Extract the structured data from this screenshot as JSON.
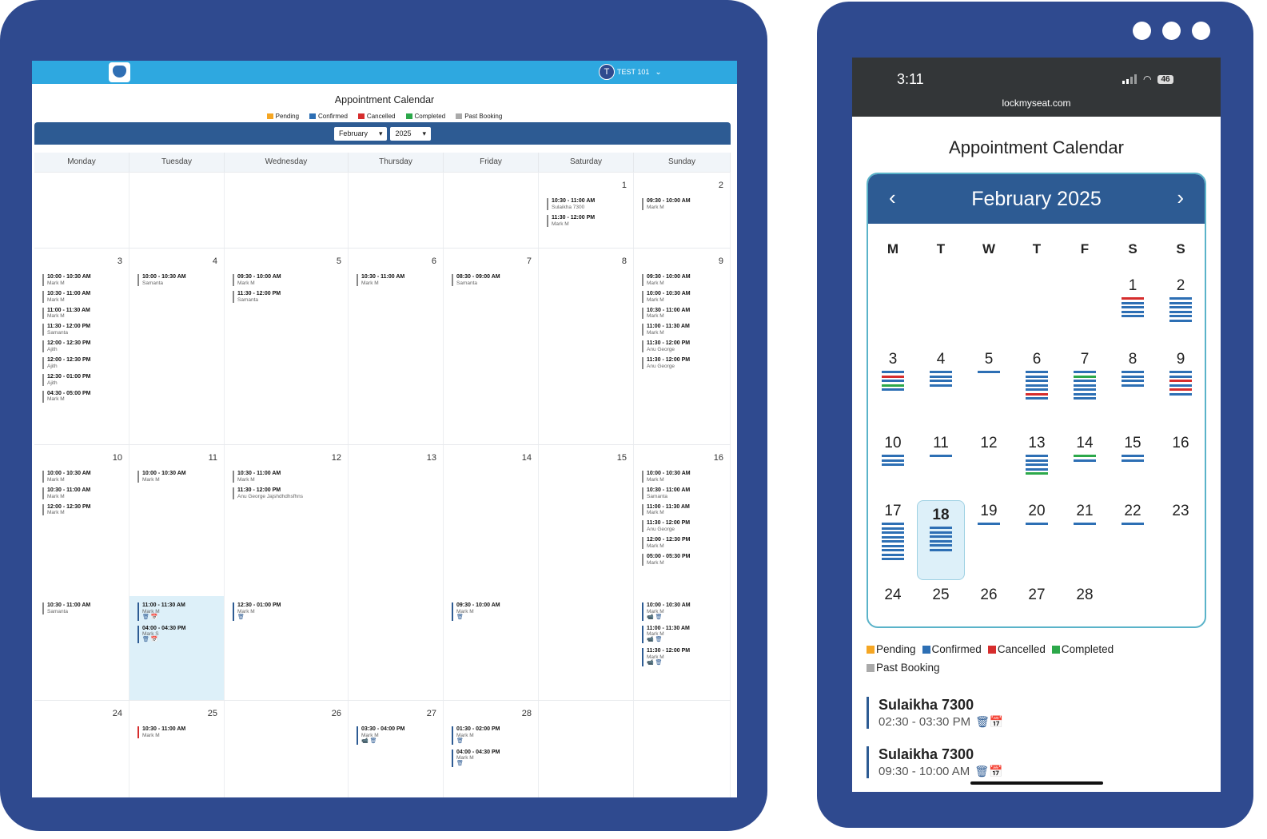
{
  "colors": {
    "pending": "#f5a623",
    "confirmed": "#2d6fb4",
    "cancelled": "#d62d2d",
    "completed": "#2ca84a",
    "past": "#aaaaaa"
  },
  "tablet": {
    "user": {
      "initial": "T",
      "name": "TEST 101"
    },
    "title": "Appointment Calendar",
    "legend": [
      "Pending",
      "Confirmed",
      "Cancelled",
      "Completed",
      "Past Booking"
    ],
    "month": "February",
    "year": "2025",
    "days": [
      "Monday",
      "Tuesday",
      "Wednesday",
      "Thursday",
      "Friday",
      "Saturday",
      "Sunday"
    ],
    "weeks": [
      [
        {},
        {},
        {},
        {},
        {},
        {
          "d": "1",
          "ev": [
            {
              "t": "10:30 - 11:00 AM",
              "n": "Sulaikha 7300"
            },
            {
              "t": "11:30 - 12:00 PM",
              "n": "Mark M"
            }
          ]
        },
        {
          "d": "2",
          "ev": [
            {
              "t": "09:30 - 10:00 AM",
              "n": "Mark M"
            }
          ]
        }
      ],
      [
        {
          "d": "3",
          "ev": [
            {
              "t": "10:00 - 10:30 AM",
              "n": "Mark M"
            },
            {
              "t": "10:30 - 11:00 AM",
              "n": "Mark M"
            },
            {
              "t": "11:00 - 11:30 AM",
              "n": "Mark M"
            },
            {
              "t": "11:30 - 12:00 PM",
              "n": "Samanta"
            },
            {
              "t": "12:00 - 12:30 PM",
              "n": "Ajith"
            },
            {
              "t": "12:00 - 12:30 PM",
              "n": "Ajith"
            },
            {
              "t": "12:30 - 01:00 PM",
              "n": "Ajith"
            },
            {
              "t": "04:30 - 05:00 PM",
              "n": "Mark M"
            }
          ]
        },
        {
          "d": "4",
          "ev": [
            {
              "t": "10:00 - 10:30 AM",
              "n": "Samanta"
            }
          ]
        },
        {
          "d": "5",
          "ev": [
            {
              "t": "09:30 - 10:00 AM",
              "n": "Mark M"
            },
            {
              "t": "11:30 - 12:00 PM",
              "n": "Samanta"
            }
          ]
        },
        {
          "d": "6",
          "ev": [
            {
              "t": "10:30 - 11:00 AM",
              "n": "Mark M"
            }
          ]
        },
        {
          "d": "7",
          "ev": [
            {
              "t": "08:30 - 09:00 AM",
              "n": "Samanta"
            }
          ]
        },
        {
          "d": "8",
          "ev": []
        },
        {
          "d": "9",
          "ev": [
            {
              "t": "09:30 - 10:00 AM",
              "n": "Mark M"
            },
            {
              "t": "10:00 - 10:30 AM",
              "n": "Mark M"
            },
            {
              "t": "10:30 - 11:00 AM",
              "n": "Mark M"
            },
            {
              "t": "11:00 - 11:30 AM",
              "n": "Mark M"
            },
            {
              "t": "11:30 - 12:00 PM",
              "n": "Anu George"
            },
            {
              "t": "11:30 - 12:00 PM",
              "n": "Anu George"
            }
          ]
        }
      ],
      [
        {
          "d": "10",
          "ev": [
            {
              "t": "10:00 - 10:30 AM",
              "n": "Mark M"
            },
            {
              "t": "10:30 - 11:00 AM",
              "n": "Mark M"
            },
            {
              "t": "12:00 - 12:30 PM",
              "n": "Mark M"
            }
          ],
          "ev2": [
            {
              "t": "10:30 - 11:00 AM",
              "n": "Samanta"
            }
          ]
        },
        {
          "d": "11",
          "ev": [
            {
              "t": "10:00 - 10:30 AM",
              "n": "Mark M"
            }
          ],
          "ev2": [
            {
              "t": "11:00 - 11:30 AM",
              "n": "Mark M",
              "c": 1,
              "ic": "🗑 📅"
            },
            {
              "t": "04:00 - 04:30 PM",
              "n": "Mark S",
              "c": 1,
              "ic": "🗑 📅"
            }
          ],
          "hl": 1
        },
        {
          "d": "12",
          "ev": [
            {
              "t": "10:30 - 11:00 AM",
              "n": "Mark M"
            },
            {
              "t": "11:30 - 12:00 PM",
              "n": "Anu George Jajshdhdhsfhns"
            }
          ],
          "ev2": [
            {
              "t": "12:30 - 01:00 PM",
              "n": "Mark M",
              "c": 1,
              "ic": "🗑"
            }
          ]
        },
        {
          "d": "13",
          "ev": []
        },
        {
          "d": "14",
          "ev": [],
          "ev2": [
            {
              "t": "09:30 - 10:00 AM",
              "n": "Mark M",
              "c": 1,
              "ic": "🗑"
            }
          ]
        },
        {
          "d": "15",
          "ev": []
        },
        {
          "d": "16",
          "ev": [
            {
              "t": "10:00 - 10:30 AM",
              "n": "Mark M"
            },
            {
              "t": "10:30 - 11:00 AM",
              "n": "Samanta"
            },
            {
              "t": "11:00 - 11:30 AM",
              "n": "Mark M"
            },
            {
              "t": "11:30 - 12:00 PM",
              "n": "Anu George"
            },
            {
              "t": "12:00 - 12:30 PM",
              "n": "Mark M"
            },
            {
              "t": "05:00 - 05:30 PM",
              "n": "Mark M"
            }
          ],
          "ev2": [
            {
              "t": "10:00 - 10:30 AM",
              "n": "Mark M",
              "c": 1,
              "ic": "📹 🗑"
            },
            {
              "t": "11:00 - 11:30 AM",
              "n": "Mark M",
              "c": 1,
              "ic": "📹 🗑"
            },
            {
              "t": "11:30 - 12:00 PM",
              "n": "Mark M",
              "c": 1,
              "ic": "📹 🗑"
            }
          ]
        }
      ],
      [
        {
          "d": "24",
          "ev": []
        },
        {
          "d": "25",
          "ev": [
            {
              "t": "10:30 - 11:00 AM",
              "n": "Mark M",
              "r": 1
            }
          ]
        },
        {
          "d": "26",
          "ev": []
        },
        {
          "d": "27",
          "ev": [
            {
              "t": "03:30 - 04:00 PM",
              "n": "Mark M",
              "c": 1,
              "ic": "📹 🗑"
            }
          ]
        },
        {
          "d": "28",
          "ev": [
            {
              "t": "01:30 - 02:00 PM",
              "n": "Mark M",
              "c": 1,
              "ic": "🗑"
            },
            {
              "t": "04:00 - 04:30 PM",
              "n": "Mark M",
              "c": 1,
              "ic": "🗑"
            }
          ]
        },
        {},
        {}
      ]
    ]
  },
  "phone": {
    "time": "3:11",
    "battery": "46",
    "url": "lockmyseat.com",
    "title": "Appointment Calendar",
    "month_label": "February 2025",
    "prev": "‹",
    "next": "›",
    "weekdays": [
      "M",
      "T",
      "W",
      "T",
      "F",
      "S",
      "S"
    ],
    "weeks": [
      [
        {},
        {},
        {},
        {},
        {},
        {
          "d": "1",
          "l": [
            "c",
            "b",
            "b",
            "b",
            "b"
          ]
        },
        {
          "d": "2",
          "l": [
            "b",
            "b",
            "b",
            "b",
            "b",
            "b"
          ]
        }
      ],
      [
        {
          "d": "3",
          "l": [
            "b",
            "c",
            "b",
            "g",
            "b"
          ]
        },
        {
          "d": "4",
          "l": [
            "b",
            "b",
            "b",
            "b"
          ]
        },
        {
          "d": "5",
          "l": [
            "b"
          ]
        },
        {
          "d": "6",
          "l": [
            "b",
            "b",
            "b",
            "b",
            "b",
            "c",
            "b"
          ]
        },
        {
          "d": "7",
          "l": [
            "b",
            "g",
            "b",
            "b",
            "b",
            "b",
            "b"
          ]
        },
        {
          "d": "8",
          "l": [
            "b",
            "b",
            "b",
            "b"
          ]
        },
        {
          "d": "9",
          "l": [
            "b",
            "b",
            "c",
            "b",
            "c",
            "b"
          ]
        }
      ],
      [
        {
          "d": "10",
          "l": [
            "b",
            "b",
            "b"
          ]
        },
        {
          "d": "11",
          "l": [
            "b"
          ]
        },
        {
          "d": "12",
          "l": []
        },
        {
          "d": "13",
          "l": [
            "b",
            "b",
            "b",
            "b",
            "g"
          ]
        },
        {
          "d": "14",
          "l": [
            "g",
            "b"
          ]
        },
        {
          "d": "15",
          "l": [
            "b",
            "b"
          ]
        },
        {
          "d": "16",
          "l": []
        }
      ],
      [
        {
          "d": "17",
          "l": [
            "b",
            "b",
            "b",
            "b",
            "b",
            "b",
            "b",
            "b",
            "b"
          ]
        },
        {
          "d": "18",
          "l": [
            "b",
            "b",
            "b",
            "b",
            "b",
            "b"
          ],
          "today": 1
        },
        {
          "d": "19",
          "l": [
            "b"
          ]
        },
        {
          "d": "20",
          "l": [
            "b"
          ]
        },
        {
          "d": "21",
          "l": [
            "b"
          ]
        },
        {
          "d": "22",
          "l": [
            "b"
          ]
        },
        {
          "d": "23",
          "l": []
        }
      ],
      [
        {
          "d": "24",
          "l": []
        },
        {
          "d": "25",
          "l": []
        },
        {
          "d": "26",
          "l": []
        },
        {
          "d": "27",
          "l": []
        },
        {
          "d": "28",
          "l": []
        },
        {},
        {}
      ]
    ],
    "legend": [
      "Pending",
      "Confirmed",
      "Cancelled",
      "Completed",
      "Past Booking"
    ],
    "events": [
      {
        "name": "Sulaikha 7300",
        "time": "02:30 - 03:30 PM",
        "icons": "🗑📅"
      },
      {
        "name": "Sulaikha 7300",
        "time": "09:30 - 10:00 AM",
        "icons": "🗑📅"
      }
    ]
  }
}
